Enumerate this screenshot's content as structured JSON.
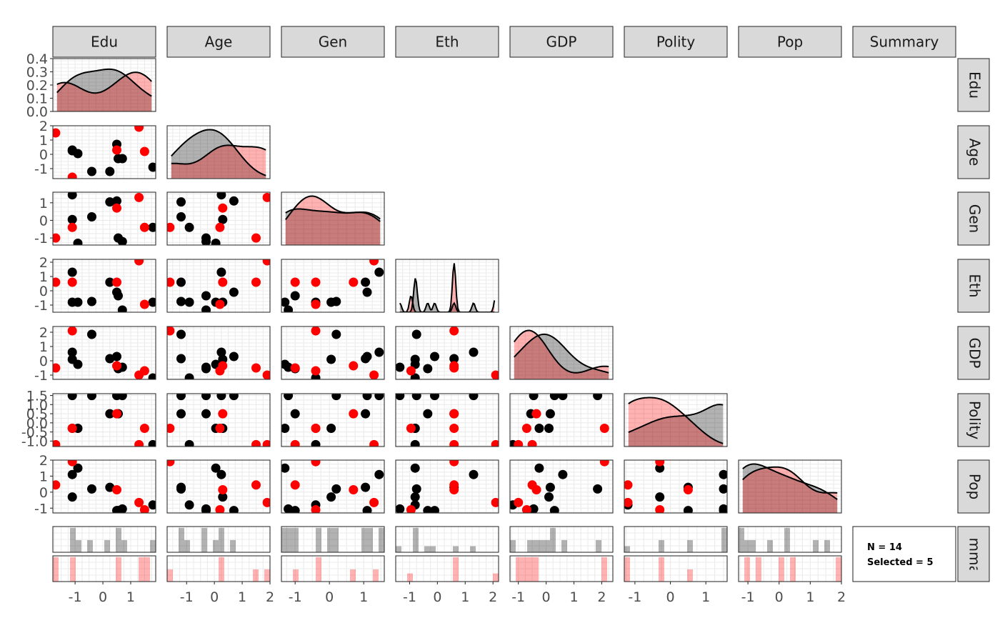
{
  "chart_data": {
    "type": "scatter",
    "variables": [
      "Edu",
      "Age",
      "Gen",
      "Eth",
      "GDP",
      "Polity",
      "Pop"
    ],
    "summary_label": "Summary",
    "summary_text": {
      "n": "N = 14",
      "selected": "Selected = 5"
    },
    "colors": {
      "unselected": "#000000",
      "selected": "#FF0000",
      "strip": "#D9D9D9",
      "panel_border": "#333333",
      "grid": "#EBEBEB"
    },
    "ticks": {
      "Edu": [
        -1,
        0,
        1
      ],
      "Age": [
        -1,
        0,
        1,
        2
      ],
      "Gen": [
        -1,
        0,
        1
      ],
      "Eth": [
        -1,
        0,
        1,
        2
      ],
      "GDP": [
        -1,
        0,
        1,
        2
      ],
      "Polity": [
        -1,
        0,
        1
      ],
      "Pop": [
        -1,
        0,
        1,
        2
      ]
    },
    "y_tick_labels": {
      "Edu": [
        "0.0",
        "0.1",
        "0.2",
        "0.3",
        "0.4"
      ],
      "Age": [
        "-1",
        "0",
        "1",
        "2"
      ],
      "Gen": [
        "-1",
        "0",
        "1"
      ],
      "Eth": [
        "-1",
        "0",
        "1",
        "2"
      ],
      "GDP": [
        "-1",
        "0",
        "1",
        "2"
      ],
      "Polity": [
        "-1.0",
        "-0.5",
        "0.0",
        "0.5",
        "1.0",
        "1.5"
      ],
      "Pop": [
        "-1",
        "0",
        "1",
        "2"
      ]
    },
    "edu_density_ylim": [
      0,
      0.4
    ],
    "ranges": {
      "Edu": [
        -1.8,
        1.9
      ],
      "Age": [
        -1.7,
        2.0
      ],
      "Gen": [
        -1.4,
        1.6
      ],
      "Eth": [
        -1.5,
        2.2
      ],
      "GDP": [
        -1.3,
        2.4
      ],
      "Polity": [
        -1.3,
        1.6
      ],
      "Pop": [
        -1.3,
        2.0
      ]
    },
    "points": [
      {
        "Edu": -1.7,
        "Age": 1.5,
        "Gen": -1.0,
        "Eth": 0.6,
        "GDP": -0.5,
        "Polity": -1.2,
        "Pop": 0.45,
        "selected": true
      },
      {
        "Edu": -1.1,
        "Age": -1.6,
        "Gen": -0.4,
        "Eth": 0.6,
        "GDP": 2.1,
        "Polity": -0.3,
        "Pop": 1.9,
        "selected": true
      },
      {
        "Edu": 0.5,
        "Age": 0.3,
        "Gen": 0.7,
        "Eth": 0.6,
        "GDP": -0.35,
        "Polity": 0.5,
        "Pop": 0.15,
        "selected": true
      },
      {
        "Edu": 1.3,
        "Age": 1.9,
        "Gen": 1.3,
        "Eth": 2.1,
        "GDP": -1.0,
        "Polity": -1.2,
        "Pop": -0.65,
        "selected": true
      },
      {
        "Edu": 1.5,
        "Age": 0.2,
        "Gen": -0.4,
        "Eth": -0.95,
        "GDP": -0.7,
        "Polity": -0.3,
        "Pop": -1.1,
        "selected": true
      },
      {
        "Edu": -1.1,
        "Age": 0.25,
        "Gen": 1.45,
        "Eth": 1.3,
        "GDP": 0.6,
        "Polity": 1.5,
        "Pop": 1.1,
        "selected": false
      },
      {
        "Edu": -1.1,
        "Age": 0.3,
        "Gen": 0.05,
        "Eth": -0.8,
        "GDP": 0.1,
        "Polity": -0.3,
        "Pop": -0.3,
        "selected": false
      },
      {
        "Edu": -0.9,
        "Age": 0.05,
        "Gen": -1.3,
        "Eth": -0.8,
        "GDP": -0.25,
        "Polity": -0.3,
        "Pop": 1.5,
        "selected": false
      },
      {
        "Edu": -0.4,
        "Age": -1.2,
        "Gen": 0.2,
        "Eth": -0.75,
        "GDP": 1.85,
        "Polity": 1.5,
        "Pop": 0.2,
        "selected": false
      },
      {
        "Edu": 0.25,
        "Age": -1.2,
        "Gen": 1.05,
        "Eth": 0.6,
        "GDP": 0.15,
        "Polity": 0.5,
        "Pop": 0.3,
        "selected": false
      },
      {
        "Edu": 0.5,
        "Age": 0.7,
        "Gen": 1.1,
        "Eth": -0.1,
        "GDP": 0.3,
        "Polity": 1.5,
        "Pop": -1.15,
        "selected": false
      },
      {
        "Edu": 0.55,
        "Age": -0.3,
        "Gen": -1.0,
        "Eth": -0.35,
        "GDP": -0.55,
        "Polity": 0.5,
        "Pop": -1.15,
        "selected": false
      },
      {
        "Edu": 0.7,
        "Age": -0.3,
        "Gen": -1.2,
        "Eth": -1.35,
        "GDP": -0.45,
        "Polity": 1.5,
        "Pop": -1.05,
        "selected": false
      },
      {
        "Edu": 1.8,
        "Age": -0.9,
        "Gen": -0.4,
        "Eth": -0.8,
        "GDP": -1.2,
        "Polity": -1.2,
        "Pop": -0.8,
        "selected": false
      }
    ]
  }
}
